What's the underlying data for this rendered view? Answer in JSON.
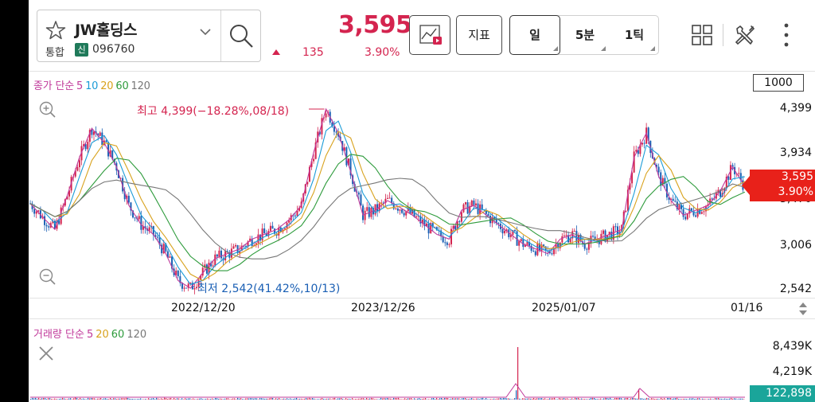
{
  "stock": {
    "name": "JW홀딩스",
    "market": "통합",
    "badge": "신",
    "code": "096760"
  },
  "quote": {
    "price": "3,595",
    "change": "135",
    "change_pct": "3.90%",
    "direction": "up"
  },
  "toolbar": {
    "indicator_label": "지표",
    "timeframes": [
      "일",
      "5분",
      "1틱"
    ],
    "selected_timeframe": "일"
  },
  "icons": [
    "star-icon",
    "chevron-down-icon",
    "search-icon",
    "chart-play-icon",
    "grid-icon",
    "tools-icon",
    "more-icon",
    "zoom-in-icon",
    "zoom-out-icon",
    "close-icon",
    "arrow-left-right-icon"
  ],
  "colors": {
    "up": "#d4244f",
    "down": "#1a5fb4",
    "ma5": "#c0399a",
    "ma10": "#1a9bd7",
    "ma20": "#d8a21d",
    "ma60": "#2e9b3c",
    "ma120": "#777777"
  },
  "price_chart": {
    "legend_label": "종가 단순",
    "ma_periods": [
      "5",
      "10",
      "20",
      "60",
      "120"
    ],
    "scale_button": "1000",
    "y_ticks": [
      "4,399",
      "3,934",
      "3,470",
      "3,006",
      "2,542"
    ],
    "x_ticks": [
      "2022/12/20",
      "2023/12/26",
      "2025/01/07",
      "01/16"
    ],
    "current_price": "3,595",
    "current_pct": "3.90%",
    "high_annotation": "최고 4,399(−18.28%,08/18)",
    "low_annotation": "최저 2,542(41.42%,10/13)"
  },
  "volume_chart": {
    "legend_label": "거래량 단순",
    "ma_periods": [
      "5",
      "20",
      "60",
      "120"
    ],
    "y_ticks": [
      "8,439K",
      "4,219K"
    ],
    "current_volume": "122,898"
  },
  "chart_data": {
    "type": "line",
    "title": "",
    "xlabel": "",
    "ylabel": "",
    "x_ticks": [
      "2022/12/20",
      "2023/12/26",
      "2025/01/07",
      "01/16"
    ],
    "ylim": [
      2542,
      4399
    ],
    "series": [
      {
        "name": "종가",
        "values": [
          3420,
          3280,
          3150,
          3500,
          3900,
          4200,
          4050,
          3800,
          3400,
          3200,
          3100,
          2900,
          2620,
          2542,
          2700,
          2850,
          2900,
          2950,
          3050,
          3100,
          3150,
          3250,
          3400,
          3950,
          4399,
          4150,
          3750,
          3300,
          3350,
          3450,
          3380,
          3300,
          3200,
          3100,
          3050,
          3350,
          3400,
          3300,
          3200,
          3100,
          3000,
          2950,
          2900,
          3050,
          3100,
          3000,
          3050,
          3100,
          3150,
          3900,
          4150,
          3700,
          3450,
          3300,
          3350,
          3400,
          3550,
          3800,
          3595
        ]
      }
    ],
    "volume_ylim": [
      0,
      8439
    ]
  }
}
